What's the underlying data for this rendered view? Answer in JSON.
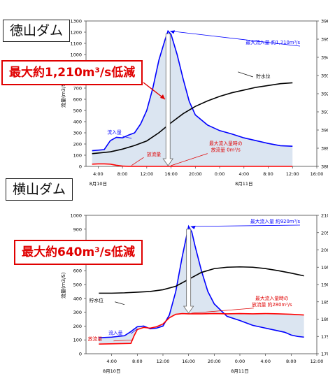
{
  "charts": [
    {
      "dam_name": "徳山ダム",
      "reduction": "最大約1,210m³/s低減",
      "y_left_label": "流量(m3/S)",
      "y_right_label": "貯水位(EL.m)",
      "date_labels": [
        "8月10日",
        "8月11日"
      ],
      "annotations": {
        "max_inflow": "最大流入量 約1,210m³/s",
        "outflow_at_max_l1": "最大流入量時の",
        "outflow_at_max_l2": "放流量 0m³/s",
        "inflow": "流入量",
        "outflow": "放流量",
        "level": "貯水位"
      }
    },
    {
      "dam_name": "横山ダム",
      "reduction": "最大約640m³/s低減",
      "y_left_label": "流量(m3/S)",
      "y_right_label": "貯水位(EL.m)",
      "date_labels": [
        "8月10日",
        "8月11日"
      ],
      "annotations": {
        "max_inflow": "最大流入量 約920m³/s",
        "outflow_at_max_l1": "最大流入量時の",
        "outflow_at_max_l2": "放流量 約280m³/s",
        "inflow": "流入量",
        "outflow": "放流量",
        "level": "貯水位"
      }
    }
  ],
  "chart_data": [
    {
      "type": "line",
      "title": "徳山ダム",
      "x_unit": "hours from 8月10日 0:00",
      "x_ticks": [
        "4:00",
        "8:00",
        "12:00",
        "16:00",
        "20:00",
        "0:00",
        "4:00",
        "8:00",
        "12:00",
        "16:00"
      ],
      "y_left": {
        "label": "流量(m3/S)",
        "range_shown": [
          0,
          1300
        ],
        "ticks": [
          0,
          100,
          200,
          300,
          400,
          500,
          600,
          700,
          800,
          900,
          1000,
          1100,
          1200,
          1300
        ]
      },
      "y_right": {
        "label": "貯水位(EL.m)",
        "range": [
          388,
          396
        ],
        "ticks": [
          388,
          389,
          390,
          391,
          392,
          393,
          394,
          395,
          396
        ]
      },
      "series": [
        {
          "name": "流入量",
          "axis": "left",
          "color": "#0000ff",
          "points": [
            [
              3,
              140
            ],
            [
              5,
              150
            ],
            [
              6,
              230
            ],
            [
              7,
              260
            ],
            [
              8,
              255
            ],
            [
              9,
              280
            ],
            [
              10,
              300
            ],
            [
              11,
              380
            ],
            [
              12,
              500
            ],
            [
              13,
              700
            ],
            [
              14,
              950
            ],
            [
              15,
              1130
            ],
            [
              15.5,
              1210
            ],
            [
              16,
              1180
            ],
            [
              17,
              1000
            ],
            [
              18,
              780
            ],
            [
              19,
              580
            ],
            [
              20,
              460
            ],
            [
              22,
              370
            ],
            [
              24,
              320
            ],
            [
              26,
              290
            ],
            [
              28,
              255
            ],
            [
              30,
              230
            ],
            [
              32,
              205
            ],
            [
              34,
              185
            ],
            [
              36,
              180
            ]
          ]
        },
        {
          "name": "放流量",
          "axis": "left",
          "color": "#ff0000",
          "points": [
            [
              3,
              20
            ],
            [
              4,
              22
            ],
            [
              5,
              22
            ],
            [
              6,
              20
            ],
            [
              7,
              10
            ],
            [
              8,
              3
            ],
            [
              9,
              0
            ],
            [
              36,
              0
            ]
          ]
        },
        {
          "name": "貯水位",
          "axis": "right",
          "color": "#000000",
          "points": [
            [
              3,
              388.7
            ],
            [
              6,
              388.8
            ],
            [
              8,
              388.95
            ],
            [
              10,
              389.15
            ],
            [
              12,
              389.4
            ],
            [
              14,
              389.85
            ],
            [
              16,
              390.4
            ],
            [
              18,
              390.9
            ],
            [
              20,
              391.3
            ],
            [
              22,
              391.6
            ],
            [
              24,
              391.85
            ],
            [
              26,
              392.05
            ],
            [
              28,
              392.2
            ],
            [
              30,
              392.35
            ],
            [
              32,
              392.45
            ],
            [
              34,
              392.55
            ],
            [
              36,
              392.6
            ]
          ]
        }
      ],
      "annotations": [
        "最大流入量 約1,210m³/s",
        "最大流入量時の 放流量 0m³/s",
        "最大約1,210m³/s低減"
      ]
    },
    {
      "type": "line",
      "title": "横山ダム",
      "x_unit": "hours from 8月10日 0:00",
      "x_ticks": [
        "4:00",
        "8:00",
        "12:00",
        "16:00",
        "20:00",
        "0:00",
        "4:00",
        "8:00",
        "12:00"
      ],
      "y_left": {
        "label": "流量(m3/S)",
        "range": [
          0,
          1000
        ],
        "ticks": [
          0,
          100,
          200,
          300,
          400,
          500,
          600,
          700,
          800,
          900,
          1000
        ]
      },
      "y_right": {
        "label": "貯水位(EL.m)",
        "range": [
          170,
          210
        ],
        "ticks": [
          170,
          175,
          180,
          185,
          190,
          195,
          200,
          205,
          210
        ]
      },
      "series": [
        {
          "name": "流入量",
          "axis": "left",
          "color": "#0000ff",
          "points": [
            [
              2,
              115
            ],
            [
              4,
              120
            ],
            [
              6,
              130
            ],
            [
              7,
              160
            ],
            [
              8,
              195
            ],
            [
              9,
              200
            ],
            [
              10,
              180
            ],
            [
              11,
              185
            ],
            [
              12,
              200
            ],
            [
              13,
              280
            ],
            [
              14,
              450
            ],
            [
              15,
              700
            ],
            [
              16,
              920
            ],
            [
              16.5,
              880
            ],
            [
              17,
              780
            ],
            [
              18,
              600
            ],
            [
              19,
              450
            ],
            [
              20,
              360
            ],
            [
              22,
              270
            ],
            [
              24,
              240
            ],
            [
              26,
              205
            ],
            [
              28,
              185
            ],
            [
              30,
              165
            ],
            [
              31,
              155
            ],
            [
              32,
              135
            ],
            [
              33,
              125
            ],
            [
              34,
              120
            ]
          ]
        },
        {
          "name": "放流量",
          "axis": "right_unused",
          "color": "#ff0000",
          "points": [
            [
              2,
              70
            ],
            [
              7,
              75
            ],
            [
              7.5,
              130
            ],
            [
              8,
              175
            ],
            [
              9,
              190
            ],
            [
              10,
              185
            ],
            [
              11,
              195
            ],
            [
              12,
              215
            ],
            [
              13,
              260
            ],
            [
              14,
              285
            ],
            [
              15,
              290
            ],
            [
              16,
              288
            ],
            [
              18,
              288
            ],
            [
              20,
              290
            ],
            [
              22,
              288
            ],
            [
              24,
              290
            ],
            [
              26,
              288
            ],
            [
              28,
              290
            ],
            [
              30,
              288
            ],
            [
              32,
              285
            ],
            [
              34,
              280
            ]
          ]
        },
        {
          "name": "貯水位",
          "axis": "right",
          "color": "#000000",
          "points": [
            [
              2,
              187.5
            ],
            [
              4,
              187.5
            ],
            [
              6,
              187.6
            ],
            [
              8,
              187.8
            ],
            [
              10,
              188.0
            ],
            [
              12,
              188.5
            ],
            [
              14,
              189.5
            ],
            [
              16,
              191.5
            ],
            [
              18,
              193.5
            ],
            [
              20,
              194.6
            ],
            [
              22,
              195.0
            ],
            [
              24,
              195.1
            ],
            [
              26,
              195.0
            ],
            [
              28,
              194.6
            ],
            [
              30,
              194.0
            ],
            [
              32,
              193.3
            ],
            [
              34,
              192.5
            ]
          ]
        }
      ],
      "annotations": [
        "最大流入量 約920m³/s",
        "最大流入量時の 放流量 約280m³/s",
        "最大約640m³/s低減"
      ]
    }
  ]
}
